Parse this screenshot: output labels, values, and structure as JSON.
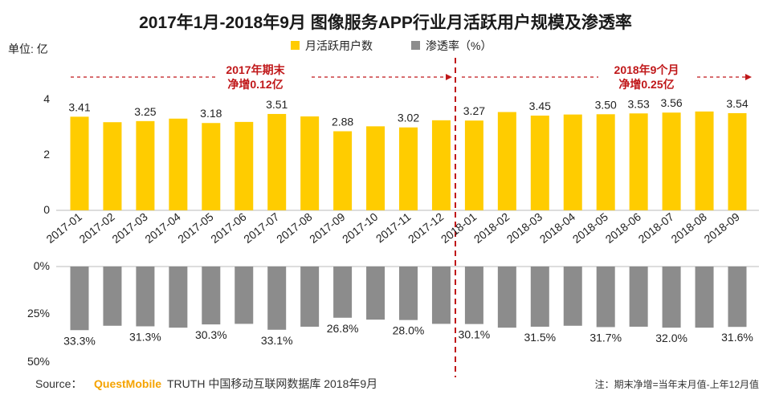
{
  "chart_data": {
    "type": "bar",
    "title": "2017年1月-2018年9月 图像服务APP行业月活跃用户规模及渗透率",
    "categories": [
      "2017-01",
      "2017-02",
      "2017-03",
      "2017-04",
      "2017-05",
      "2017-06",
      "2017-07",
      "2017-08",
      "2017-09",
      "2017-10",
      "2017-11",
      "2017-12",
      "2018-01",
      "2018-02",
      "2018-03",
      "2018-04",
      "2018-05",
      "2018-06",
      "2018-07",
      "2018-08",
      "2018-09"
    ],
    "unit_label": "单位: 亿",
    "upper_axis": {
      "ticks": [
        "0",
        "2",
        "4"
      ],
      "ylim": [
        0,
        4
      ]
    },
    "lower_axis": {
      "ticks": [
        "0%",
        "25%",
        "50%"
      ],
      "ylim": [
        0,
        50
      ],
      "inverted": true
    },
    "series": [
      {
        "name": "月活跃用户数",
        "color": "#ffcc00",
        "values": [
          3.41,
          3.21,
          3.25,
          3.34,
          3.18,
          3.22,
          3.51,
          3.42,
          2.88,
          3.06,
          3.02,
          3.28,
          3.27,
          3.58,
          3.45,
          3.49,
          3.5,
          3.53,
          3.56,
          3.6,
          3.54
        ],
        "data_labels": [
          "3.41",
          "",
          "3.25",
          "",
          "3.18",
          "",
          "3.51",
          "",
          "2.88",
          "",
          "3.02",
          "",
          "3.27",
          "",
          "3.45",
          "",
          "3.50",
          "3.53",
          "3.56",
          "",
          "3.54"
        ]
      },
      {
        "name": "渗透率（%）",
        "color": "#8c8c8c",
        "values": [
          33.3,
          31.0,
          31.3,
          32.0,
          30.3,
          30.0,
          33.1,
          31.5,
          26.8,
          27.8,
          28.0,
          30.0,
          30.1,
          32.0,
          31.5,
          31.0,
          31.7,
          31.5,
          32.0,
          32.0,
          31.6
        ],
        "data_labels": [
          "33.3%",
          "",
          "31.3%",
          "",
          "30.3%",
          "",
          "33.1%",
          "",
          "26.8%",
          "",
          "28.0%",
          "",
          "30.1%",
          "",
          "31.5%",
          "",
          "31.7%",
          "",
          "32.0%",
          "",
          "31.6%"
        ]
      }
    ],
    "annotations": [
      {
        "lines": [
          "2017年期末",
          "净增0.12亿"
        ]
      },
      {
        "lines": [
          "2018年9个月",
          "净增0.25亿"
        ]
      }
    ],
    "grid": false,
    "legend_position": "top-center",
    "accent_color": "#c0181a"
  },
  "footer": {
    "source_label": "Source：",
    "brand": "QuestMobile",
    "source_rest": "TRUTH 中国移动互联网数据库 2018年9月",
    "note": "注：期末净增=当年末月值-上年12月值"
  }
}
